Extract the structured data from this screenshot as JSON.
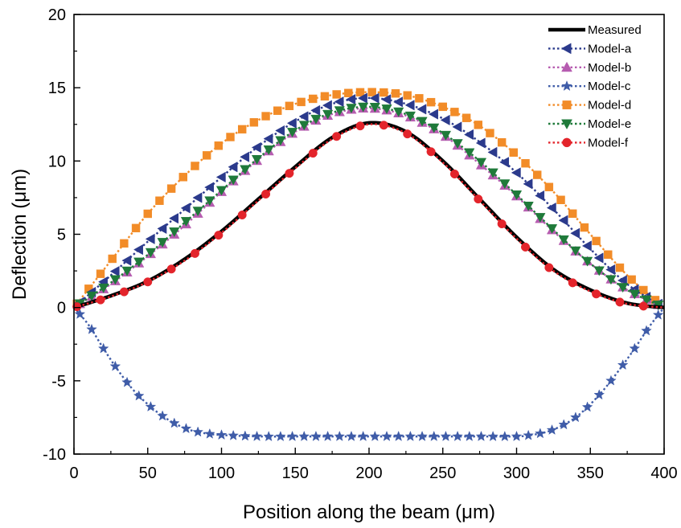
{
  "chart_data": {
    "type": "line",
    "title": "",
    "xlabel": "Position along the beam (μm)",
    "ylabel": "Deflection (μm)",
    "xlim": [
      0,
      400
    ],
    "ylim": [
      -10,
      20
    ],
    "xticks": [
      "0",
      "50",
      "100",
      "150",
      "200",
      "250",
      "300",
      "350",
      "400"
    ],
    "yticks": [
      "-10",
      "-5",
      "0",
      "5",
      "10",
      "15",
      "20"
    ],
    "grid": false,
    "legend_position": "top-right",
    "series": [
      {
        "name": "Measured",
        "color": "#000000",
        "style": "solid",
        "marker": "none",
        "x": [
          0,
          25,
          50,
          75,
          100,
          125,
          150,
          175,
          200,
          225,
          250,
          275,
          300,
          325,
          350,
          375,
          400
        ],
        "y": [
          0,
          0.8,
          1.8,
          3.3,
          5.2,
          7.4,
          9.6,
          11.6,
          12.6,
          12.0,
          10.0,
          7.4,
          4.8,
          2.6,
          1.2,
          0.3,
          0
        ]
      },
      {
        "name": "Model-a",
        "color": "#2b3a8c",
        "style": "dotted",
        "marker": "triangle-left",
        "x": [
          0,
          25,
          50,
          75,
          100,
          125,
          150,
          175,
          200,
          225,
          250,
          275,
          300,
          325,
          350,
          375,
          400
        ],
        "y": [
          0,
          2.2,
          4.5,
          6.7,
          8.9,
          11.0,
          12.7,
          13.9,
          14.3,
          13.9,
          12.9,
          11.3,
          9.2,
          6.7,
          4.0,
          1.6,
          0
        ]
      },
      {
        "name": "Model-b",
        "color": "#b65cb0",
        "style": "dotted",
        "marker": "triangle-up",
        "x": [
          0,
          25,
          50,
          75,
          100,
          125,
          150,
          175,
          200,
          225,
          250,
          275,
          300,
          325,
          350,
          375,
          400
        ],
        "y": [
          0,
          1.6,
          3.5,
          5.6,
          7.9,
          10.1,
          12.0,
          13.2,
          13.6,
          13.1,
          11.8,
          9.8,
          7.6,
          5.2,
          3.0,
          1.2,
          0
        ]
      },
      {
        "name": "Model-c",
        "color": "#3f5ca8",
        "style": "dotted",
        "marker": "star",
        "x": [
          0,
          10,
          20,
          30,
          40,
          50,
          60,
          70,
          80,
          90,
          100,
          125,
          150,
          175,
          200,
          225,
          250,
          275,
          300,
          310,
          320,
          330,
          340,
          350,
          360,
          370,
          380,
          390,
          400
        ],
        "y": [
          0,
          -1.2,
          -2.8,
          -4.3,
          -5.6,
          -6.6,
          -7.4,
          -8.0,
          -8.4,
          -8.6,
          -8.7,
          -8.8,
          -8.8,
          -8.8,
          -8.8,
          -8.8,
          -8.8,
          -8.8,
          -8.8,
          -8.7,
          -8.5,
          -8.1,
          -7.5,
          -6.6,
          -5.5,
          -4.2,
          -2.8,
          -1.3,
          0
        ]
      },
      {
        "name": "Model-d",
        "color": "#f28c28",
        "style": "dotted",
        "marker": "square",
        "x": [
          0,
          25,
          50,
          75,
          100,
          125,
          150,
          175,
          200,
          225,
          250,
          275,
          300,
          325,
          350,
          375,
          400
        ],
        "y": [
          0,
          3.2,
          6.4,
          9.0,
          11.2,
          12.8,
          13.9,
          14.5,
          14.7,
          14.5,
          13.7,
          12.4,
          10.4,
          7.9,
          5.0,
          2.2,
          0
        ]
      },
      {
        "name": "Model-e",
        "color": "#1f7a3a",
        "style": "dotted",
        "marker": "triangle-down",
        "x": [
          0,
          25,
          50,
          75,
          100,
          125,
          150,
          175,
          200,
          225,
          250,
          275,
          300,
          325,
          350,
          375,
          400
        ],
        "y": [
          0,
          1.7,
          3.6,
          5.8,
          8.0,
          10.2,
          12.1,
          13.3,
          13.7,
          13.2,
          11.9,
          10.0,
          7.7,
          5.3,
          3.0,
          1.2,
          0
        ]
      },
      {
        "name": "Model-f",
        "color": "#e3242b",
        "style": "dotted",
        "marker": "circle",
        "x": [
          0,
          25,
          50,
          75,
          100,
          125,
          150,
          175,
          200,
          225,
          250,
          275,
          300,
          325,
          350,
          375,
          400
        ],
        "y": [
          0,
          0.75,
          1.75,
          3.2,
          5.1,
          7.3,
          9.5,
          11.5,
          12.5,
          11.9,
          9.9,
          7.3,
          4.7,
          2.5,
          1.1,
          0.25,
          0
        ]
      }
    ]
  }
}
